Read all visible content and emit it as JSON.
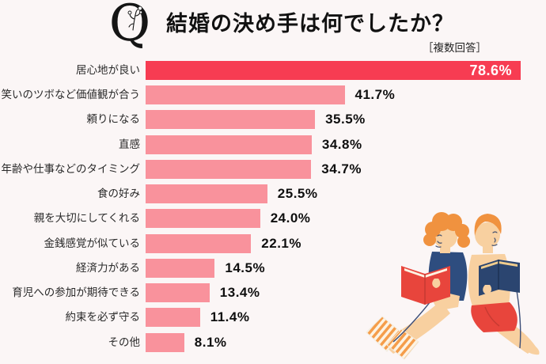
{
  "header": {
    "logo_letter": "Q",
    "title": "結婚の決め手は何でしたか？",
    "note": "［複数回答］"
  },
  "chart_data": {
    "type": "bar",
    "orientation": "horizontal",
    "title": "結婚の決め手は何でしたか？",
    "subtitle": "複数回答",
    "unit": "%",
    "categories": [
      "居心地が良い",
      "笑いのツボなど価値観が合う",
      "頼りになる",
      "直感",
      "年齢や仕事などのタイミング",
      "食の好み",
      "親を大切にしてくれる",
      "金銭感覚が似ている",
      "経済力がある",
      "育児への参加が期待できる",
      "約束を必ず守る",
      "その他"
    ],
    "values": [
      78.6,
      41.7,
      35.5,
      34.8,
      34.7,
      25.5,
      24.0,
      22.1,
      14.5,
      13.4,
      11.4,
      8.1
    ],
    "value_labels": [
      "78.6%",
      "41.7%",
      "35.5%",
      "34.8%",
      "34.7%",
      "25.5%",
      "24.0%",
      "22.1%",
      "14.5%",
      "13.4%",
      "11.4%",
      "8.1%"
    ],
    "highlight_index": 0,
    "xlim": [
      0,
      80
    ],
    "grid": false,
    "legend": "none",
    "colors": {
      "highlight_bar": "#f73c52",
      "bar": "#f9929c",
      "background": "#fbf6f6",
      "value_text": "#0f0f0f",
      "highlight_value_text": "#ffffff"
    }
  },
  "illustration": {
    "description": "couple-sitting-back-to-back-reading-books"
  }
}
